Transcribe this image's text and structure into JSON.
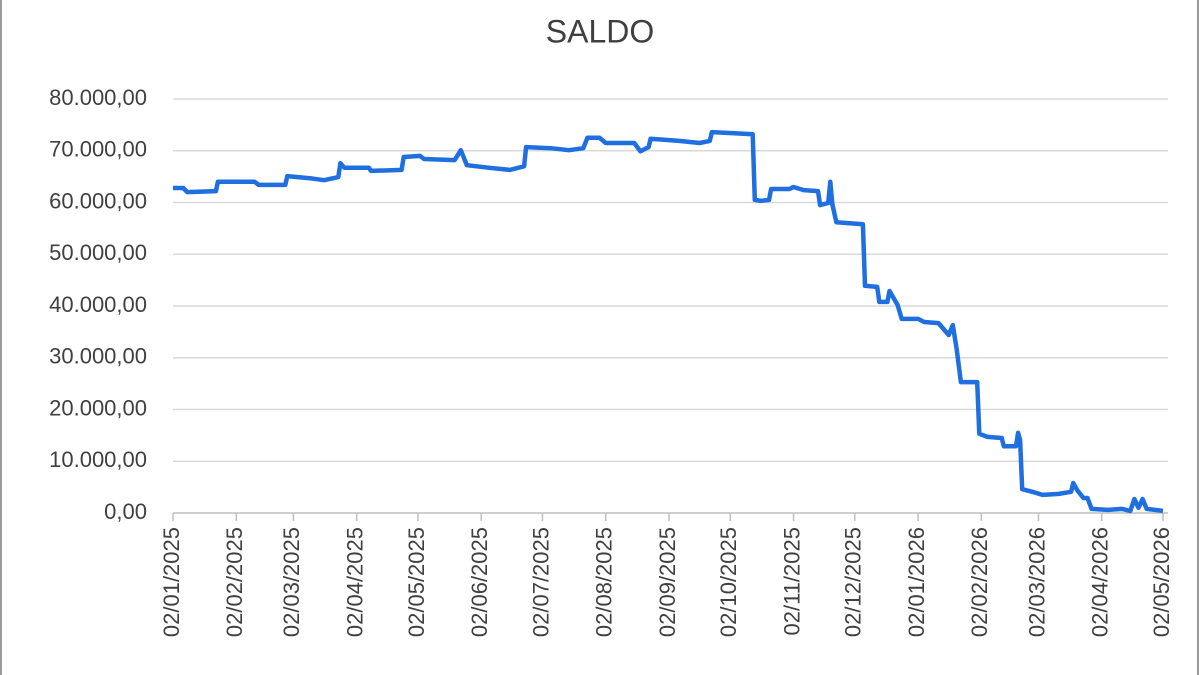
{
  "chart_data": {
    "type": "line",
    "title": "SALDO",
    "x": [
      "2025-01-02",
      "2025-01-07",
      "2025-01-09",
      "2025-01-23",
      "2025-01-24",
      "2025-02-11",
      "2025-02-13",
      "2025-02-26",
      "2025-02-27",
      "2025-03-10",
      "2025-03-17",
      "2025-03-24",
      "2025-03-25",
      "2025-03-27",
      "2025-04-08",
      "2025-04-09",
      "2025-04-24",
      "2025-04-25",
      "2025-05-03",
      "2025-05-05",
      "2025-05-20",
      "2025-05-23",
      "2025-05-26",
      "2025-06-06",
      "2025-06-16",
      "2025-06-23",
      "2025-06-24",
      "2025-07-06",
      "2025-07-15",
      "2025-07-22",
      "2025-07-24",
      "2025-07-30",
      "2025-08-02",
      "2025-08-16",
      "2025-08-19",
      "2025-08-23",
      "2025-08-24",
      "2025-09-07",
      "2025-09-17",
      "2025-09-22",
      "2025-09-23",
      "2025-10-04",
      "2025-10-13",
      "2025-10-14",
      "2025-10-17",
      "2025-10-21",
      "2025-10-22",
      "2025-10-31",
      "2025-11-02",
      "2025-11-07",
      "2025-11-14",
      "2025-11-15",
      "2025-11-19",
      "2025-11-20",
      "2025-11-21",
      "2025-11-23",
      "2025-12-06",
      "2025-12-07",
      "2025-12-13",
      "2025-12-14",
      "2025-12-18",
      "2025-12-19",
      "2025-12-23",
      "2025-12-25",
      "2026-01-02",
      "2026-01-05",
      "2026-01-12",
      "2026-01-17",
      "2026-01-19",
      "2026-01-21",
      "2026-01-23",
      "2026-01-31",
      "2026-02-01",
      "2026-02-05",
      "2026-02-12",
      "2026-02-13",
      "2026-02-19",
      "2026-02-20",
      "2026-02-21",
      "2026-02-22",
      "2026-02-27",
      "2026-03-04",
      "2026-03-12",
      "2026-03-18",
      "2026-03-19",
      "2026-03-21",
      "2026-03-24",
      "2026-03-26",
      "2026-03-28",
      "2026-04-05",
      "2026-04-12",
      "2026-04-16",
      "2026-04-18",
      "2026-04-20",
      "2026-04-22",
      "2026-04-24",
      "2026-05-02"
    ],
    "series": [
      {
        "name": "SALDO",
        "color": "#1f6fe0",
        "values": [
          62800,
          62800,
          62000,
          62200,
          64000,
          64000,
          63400,
          63400,
          65100,
          64700,
          64300,
          64900,
          67600,
          66700,
          66700,
          66100,
          66300,
          68800,
          69000,
          68400,
          68200,
          70100,
          67200,
          66700,
          66300,
          67000,
          70700,
          70500,
          70100,
          70500,
          72500,
          72500,
          71500,
          71500,
          69900,
          70700,
          72300,
          71900,
          71500,
          71900,
          73600,
          73400,
          73200,
          60500,
          60300,
          60500,
          62600,
          62600,
          63000,
          62400,
          62200,
          59500,
          59900,
          64000,
          59700,
          56200,
          55800,
          43900,
          43700,
          40800,
          40800,
          42900,
          40200,
          37500,
          37500,
          36900,
          36700,
          34400,
          36300,
          31500,
          25300,
          25300,
          15300,
          14700,
          14500,
          12900,
          12900,
          15500,
          14100,
          4600,
          4100,
          3500,
          3700,
          4100,
          5800,
          4400,
          2900,
          2900,
          800,
          600,
          800,
          400,
          2700,
          1000,
          2700,
          800,
          400
        ]
      }
    ],
    "xlim": [
      "2025-01-02",
      "2026-05-02"
    ],
    "xticks": [
      {
        "value": "2025-01-02",
        "label": "02/01/2025"
      },
      {
        "value": "2025-02-02",
        "label": "02/02/2025"
      },
      {
        "value": "2025-03-02",
        "label": "02/03/2025"
      },
      {
        "value": "2025-04-02",
        "label": "02/04/2025"
      },
      {
        "value": "2025-05-02",
        "label": "02/05/2025"
      },
      {
        "value": "2025-06-02",
        "label": "02/06/2025"
      },
      {
        "value": "2025-07-02",
        "label": "02/07/2025"
      },
      {
        "value": "2025-08-02",
        "label": "02/08/2025"
      },
      {
        "value": "2025-09-02",
        "label": "02/09/2025"
      },
      {
        "value": "2025-10-02",
        "label": "02/10/2025"
      },
      {
        "value": "2025-11-02",
        "label": "02/11/2025"
      },
      {
        "value": "2025-12-02",
        "label": "02/12/2025"
      },
      {
        "value": "2026-01-02",
        "label": "02/01/2026"
      },
      {
        "value": "2026-02-02",
        "label": "02/02/2026"
      },
      {
        "value": "2026-03-02",
        "label": "02/03/2026"
      },
      {
        "value": "2026-04-02",
        "label": "02/04/2026"
      },
      {
        "value": "2026-05-02",
        "label": "02/05/2026"
      }
    ],
    "ylim": [
      0,
      80000
    ],
    "yticks": [
      {
        "value": 0,
        "label": "0,00"
      },
      {
        "value": 10000,
        "label": "10.000,00"
      },
      {
        "value": 20000,
        "label": "20.000,00"
      },
      {
        "value": 30000,
        "label": "30.000,00"
      },
      {
        "value": 40000,
        "label": "40.000,00"
      },
      {
        "value": 50000,
        "label": "50.000,00"
      },
      {
        "value": 60000,
        "label": "60.000,00"
      },
      {
        "value": 70000,
        "label": "70.000,00"
      },
      {
        "value": 80000,
        "label": "80.000,00"
      }
    ],
    "grid": true
  }
}
